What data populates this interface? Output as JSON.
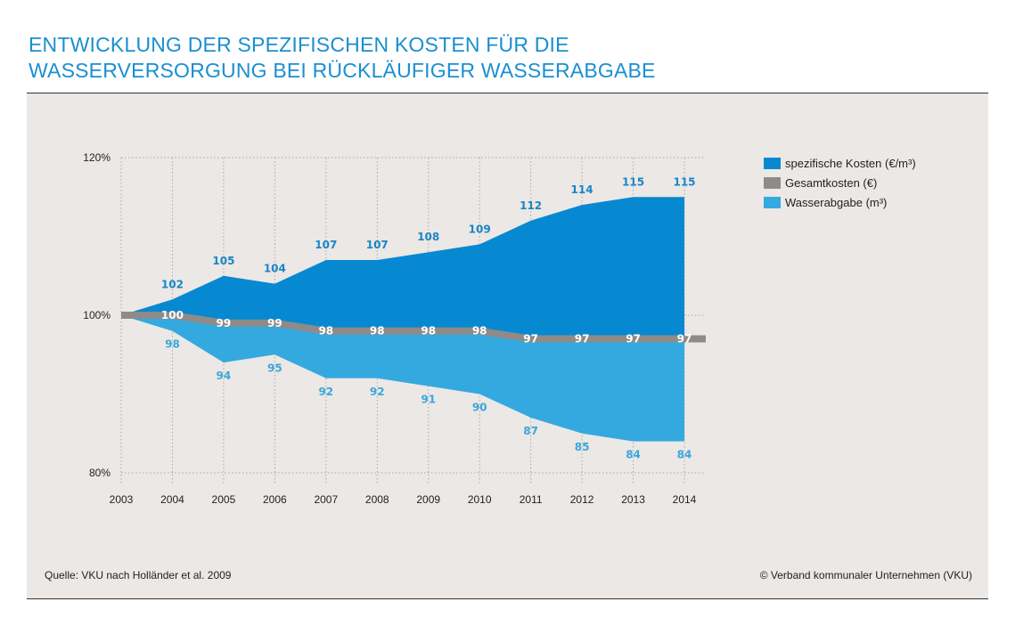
{
  "title_lines": [
    "ENTWICKLUNG DER SPEZIFISCHEN KOSTEN FÜR DIE",
    "WASSERVERSORGUNG BEI RÜCKLÄUFIGER WASSERABGABE"
  ],
  "source": "Quelle: VKU nach Holländer et al. 2009",
  "copyright": "© Verband kommunaler Unternehmen (VKU)",
  "chart_data": {
    "type": "area",
    "title": "ENTWICKLUNG DER SPEZIFISCHEN KOSTEN FÜR DIE WASSERVERSORGUNG BEI RÜCKLÄUFIGER WASSERABGABE",
    "x": [
      "2003",
      "2004",
      "2005",
      "2006",
      "2007",
      "2008",
      "2009",
      "2010",
      "2011",
      "2012",
      "2013",
      "2014"
    ],
    "ylim": [
      80,
      120
    ],
    "yticks": [
      "80%",
      "100%",
      "120%"
    ],
    "ytick_values": [
      80,
      100,
      120
    ],
    "grid": true,
    "legend": "top-right",
    "series": [
      {
        "name": "spezifische Kosten (€/m³)",
        "color": "#0789d1",
        "values": [
          100,
          102,
          105,
          104,
          107,
          107,
          108,
          109,
          112,
          114,
          115,
          115
        ]
      },
      {
        "name": "Gesamtkosten (€)",
        "color": "#8f8b89",
        "values": [
          100,
          100,
          99,
          99,
          98,
          98,
          98,
          98,
          97,
          97,
          97,
          97
        ]
      },
      {
        "name": "Wasserabgabe (m³)",
        "color": "#33a9e0",
        "values": [
          100,
          98,
          94,
          95,
          92,
          92,
          91,
          90,
          87,
          85,
          84,
          84
        ]
      }
    ]
  }
}
